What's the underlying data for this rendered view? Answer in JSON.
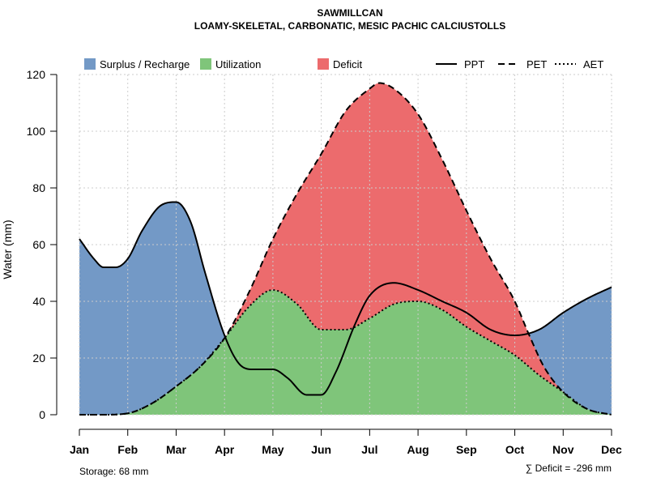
{
  "chart_data": {
    "type": "area",
    "title": "SAWMILLCAN",
    "subtitle": "LOAMY-SKELETAL, CARBONATIC, MESIC PACHIC CALCIUSTOLLS",
    "xlabel": "",
    "ylabel": "Water (mm)",
    "ylim": [
      0,
      120
    ],
    "yticks": [
      0,
      20,
      40,
      60,
      80,
      100,
      120
    ],
    "grid": true,
    "categories": [
      "Jan",
      "Feb",
      "Mar",
      "Apr",
      "May",
      "Jun",
      "Jul",
      "Aug",
      "Sep",
      "Oct",
      "Nov",
      "Dec"
    ],
    "lines": [
      {
        "name": "PPT",
        "style": "solid",
        "x": [
          0,
          0.3,
          0.5,
          0.75,
          1,
          1.3,
          1.7,
          2,
          2.3,
          2.6,
          3,
          3.3,
          3.6,
          4,
          4.3,
          4.7,
          5,
          5.3,
          5.7,
          6,
          6.5,
          7,
          7.5,
          8,
          8.5,
          9,
          9.5,
          10,
          10.5,
          11
        ],
        "values": [
          62,
          55,
          52,
          52,
          55,
          65,
          74,
          75,
          68,
          50,
          28,
          18,
          16,
          16,
          13,
          7,
          7,
          15,
          32,
          42,
          46.5,
          44,
          40,
          36,
          30,
          28,
          30,
          36,
          41,
          45
        ]
      },
      {
        "name": "PET",
        "style": "dashed",
        "x": [
          0,
          0.5,
          1,
          1.5,
          2,
          2.5,
          3,
          3.5,
          4,
          4.5,
          5,
          5.5,
          6,
          6.2,
          6.5,
          7,
          7.5,
          8,
          8.5,
          9,
          9.3,
          9.6,
          10,
          10.5,
          11
        ],
        "values": [
          0,
          0,
          0.5,
          4,
          10,
          17,
          27,
          43,
          62,
          78,
          92,
          107,
          115,
          117,
          115,
          106,
          90,
          72,
          55,
          40,
          28,
          17,
          8,
          2,
          0
        ]
      },
      {
        "name": "AET",
        "style": "dotted",
        "x": [
          0,
          0.5,
          1,
          1.5,
          2,
          2.5,
          3,
          3.5,
          4,
          4.5,
          5,
          5.5,
          6,
          6.5,
          7,
          7.5,
          8,
          8.5,
          9,
          9.5,
          10,
          10.5,
          11
        ],
        "values": [
          0,
          0,
          0.5,
          4,
          10,
          17,
          27,
          38,
          44,
          39,
          30,
          30,
          34,
          39,
          40,
          37,
          31,
          26,
          21,
          14,
          8,
          2,
          0
        ]
      }
    ],
    "legend": [
      {
        "label": "Surplus / Recharge",
        "type": "area",
        "color": "#7399C6"
      },
      {
        "label": "Utilization",
        "type": "area",
        "color": "#7FC57A"
      },
      {
        "label": "Deficit",
        "type": "area",
        "color": "#EC6B6D"
      },
      {
        "label": "PPT",
        "type": "line",
        "style": "solid"
      },
      {
        "label": "PET",
        "type": "line",
        "style": "dashed"
      },
      {
        "label": "AET",
        "type": "line",
        "style": "dotted"
      }
    ],
    "legend_position": "top",
    "annotations": {
      "storage": "Storage: 68 mm",
      "deficit": "∑ Deficit = -296 mm"
    },
    "colors": {
      "surplus": "#7399C6",
      "utilization": "#7FC57A",
      "deficit": "#EC6B6D"
    }
  }
}
